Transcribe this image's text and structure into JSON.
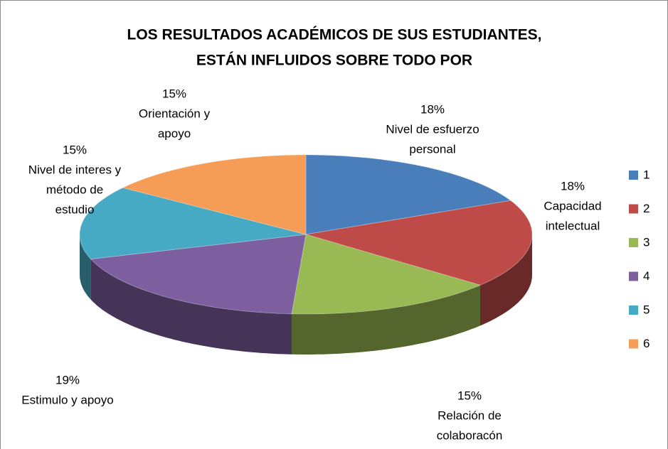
{
  "chart_data": {
    "type": "pie3d",
    "title": [
      "LOS RESULTADOS ACADÉMICOS DE SUS ESTUDIANTES,",
      "ESTÁN INFLUIDOS SOBRE TODO POR"
    ],
    "categories": [
      "1",
      "2",
      "3",
      "4",
      "5",
      "6"
    ],
    "values": [
      18,
      18,
      15,
      19,
      15,
      15
    ],
    "value_labels": [
      "18%",
      "18%",
      "15%",
      "19%",
      "15%",
      "15%"
    ],
    "slice_labels": [
      [
        "Nivel de esfuerzo",
        "personal"
      ],
      [
        "Capacidad",
        "intelectual"
      ],
      [
        "Relación de",
        "colaboracón"
      ],
      [
        "Estimulo y apoyo"
      ],
      [
        "Nivel de interes y",
        "método de",
        "estudio"
      ],
      [
        "Orientación y",
        "apoyo"
      ]
    ],
    "colors": [
      "#4a7ebb",
      "#be4b48",
      "#98b954",
      "#7d5fa0",
      "#46aac5",
      "#f59d56"
    ],
    "legend": "right"
  }
}
